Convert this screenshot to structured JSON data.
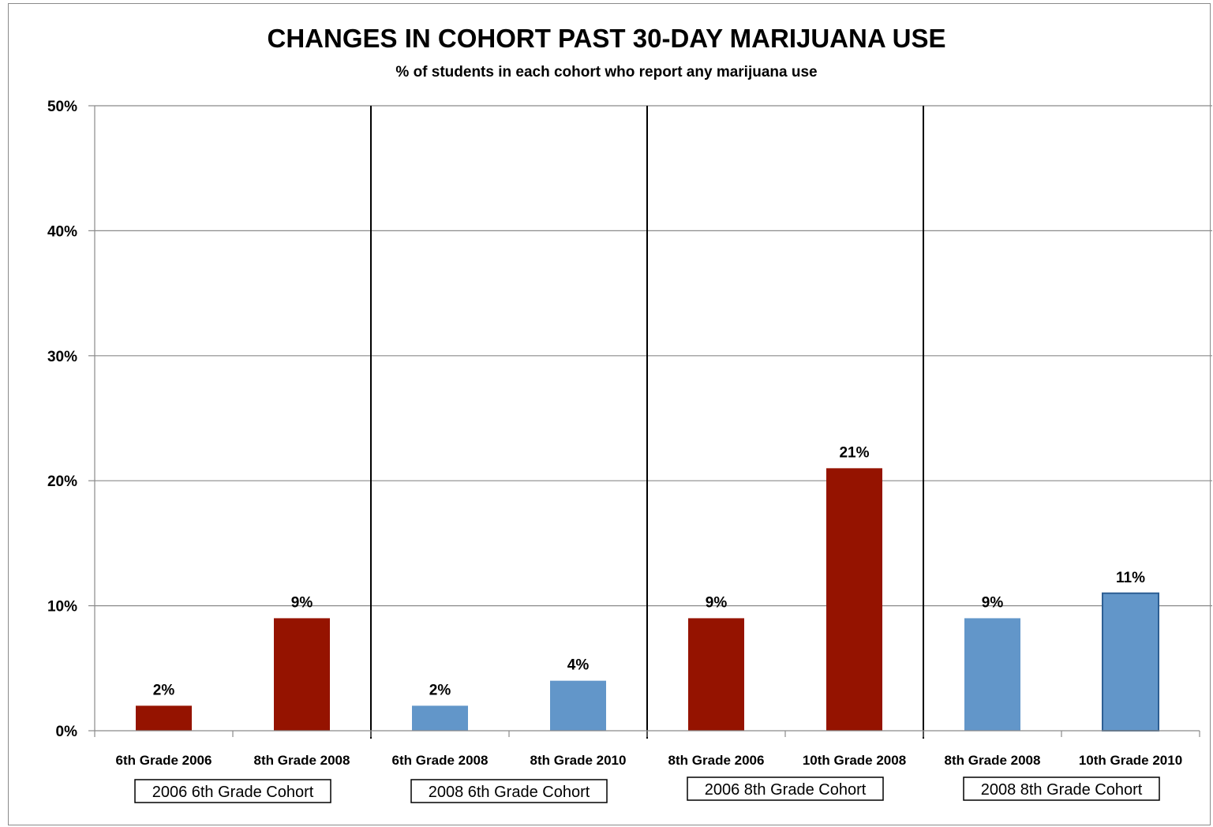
{
  "chart_data": {
    "type": "bar",
    "title": "CHANGES IN COHORT PAST 30-DAY MARIJUANA USE",
    "subtitle": "% of students in each cohort who report any marijuana use",
    "ylim": [
      0,
      50
    ],
    "yticks": [
      "0%",
      "10%",
      "20%",
      "30%",
      "40%",
      "50%"
    ],
    "grid": true,
    "categories": [
      "6th Grade 2006",
      "8th Grade 2008",
      "6th Grade 2008",
      "8th Grade 2010",
      "8th Grade 2006",
      "10th Grade 2008",
      "8th Grade 2008",
      "10th Grade 2010"
    ],
    "values": [
      2,
      9,
      2,
      4,
      9,
      21,
      9,
      11
    ],
    "value_labels": [
      "2%",
      "9%",
      "2%",
      "4%",
      "9%",
      "21%",
      "9%",
      "11%"
    ],
    "bar_colors": [
      "#951300",
      "#951300",
      "#6296c9",
      "#6296c9",
      "#951300",
      "#951300",
      "#6296c9",
      "#6296c9"
    ],
    "bar_outline_last": "#2d5f94",
    "cohort_groups": [
      {
        "label": "2006 6th Grade Cohort",
        "category_indices": [
          0,
          1
        ]
      },
      {
        "label": "2008 6th Grade Cohort",
        "category_indices": [
          2,
          3
        ]
      },
      {
        "label": "2006 8th Grade Cohort",
        "category_indices": [
          4,
          5
        ]
      },
      {
        "label": "2008 8th Grade Cohort",
        "category_indices": [
          6,
          7
        ]
      }
    ]
  },
  "colors": {
    "red": "#951300",
    "blue": "#6296c9",
    "gridline": "#8a8a8a",
    "separator": "#000000"
  }
}
